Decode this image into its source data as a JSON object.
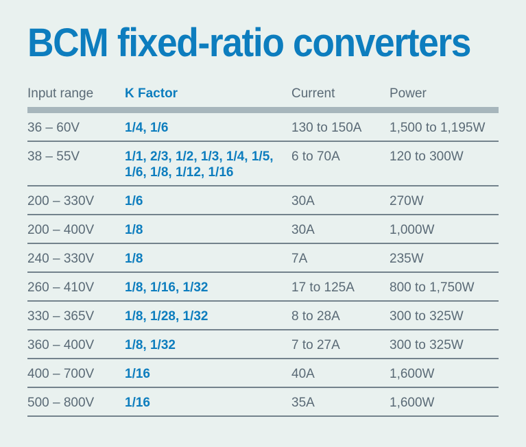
{
  "page": {
    "title": "BCM fixed-ratio converters"
  },
  "colors": {
    "accent_blue": "#0d7dbe",
    "text_gray": "#5a6a76",
    "header_bar_gray": "#a7b6bc",
    "divider_gray": "#73828c",
    "background": "#e9f1ef"
  },
  "table": {
    "headers": [
      "Input range",
      "K Factor",
      "Current",
      "Power"
    ],
    "rows": [
      {
        "input": "36 – 60V",
        "k_factor": "1/4, 1/6",
        "current": "130 to 150A",
        "power": "1,500 to 1,195W"
      },
      {
        "input": "38 – 55V",
        "k_factor": "1/1, 2/3, 1/2, 1/3, 1/4, 1/5, 1/6, 1/8, 1/12, 1/16",
        "current": "6 to 70A",
        "power": "120 to 300W"
      },
      {
        "input": "200 – 330V",
        "k_factor": "1/6",
        "current": "30A",
        "power": "270W"
      },
      {
        "input": "200 – 400V",
        "k_factor": "1/8",
        "current": "30A",
        "power": "1,000W"
      },
      {
        "input": "240 – 330V",
        "k_factor": "1/8",
        "current": "7A",
        "power": "235W"
      },
      {
        "input": "260 – 410V",
        "k_factor": "1/8, 1/16, 1/32",
        "current": "17 to 125A",
        "power": "800 to 1,750W"
      },
      {
        "input": "330 – 365V",
        "k_factor": "1/8, 1/28, 1/32",
        "current": "8 to 28A",
        "power": "300 to 325W"
      },
      {
        "input": "360 – 400V",
        "k_factor": "1/8, 1/32",
        "current": "7 to 27A",
        "power": "300 to 325W"
      },
      {
        "input": "400 – 700V",
        "k_factor": "1/16",
        "current": "40A",
        "power": "1,600W"
      },
      {
        "input": "500 – 800V",
        "k_factor": "1/16",
        "current": "35A",
        "power": "1,600W"
      }
    ]
  }
}
